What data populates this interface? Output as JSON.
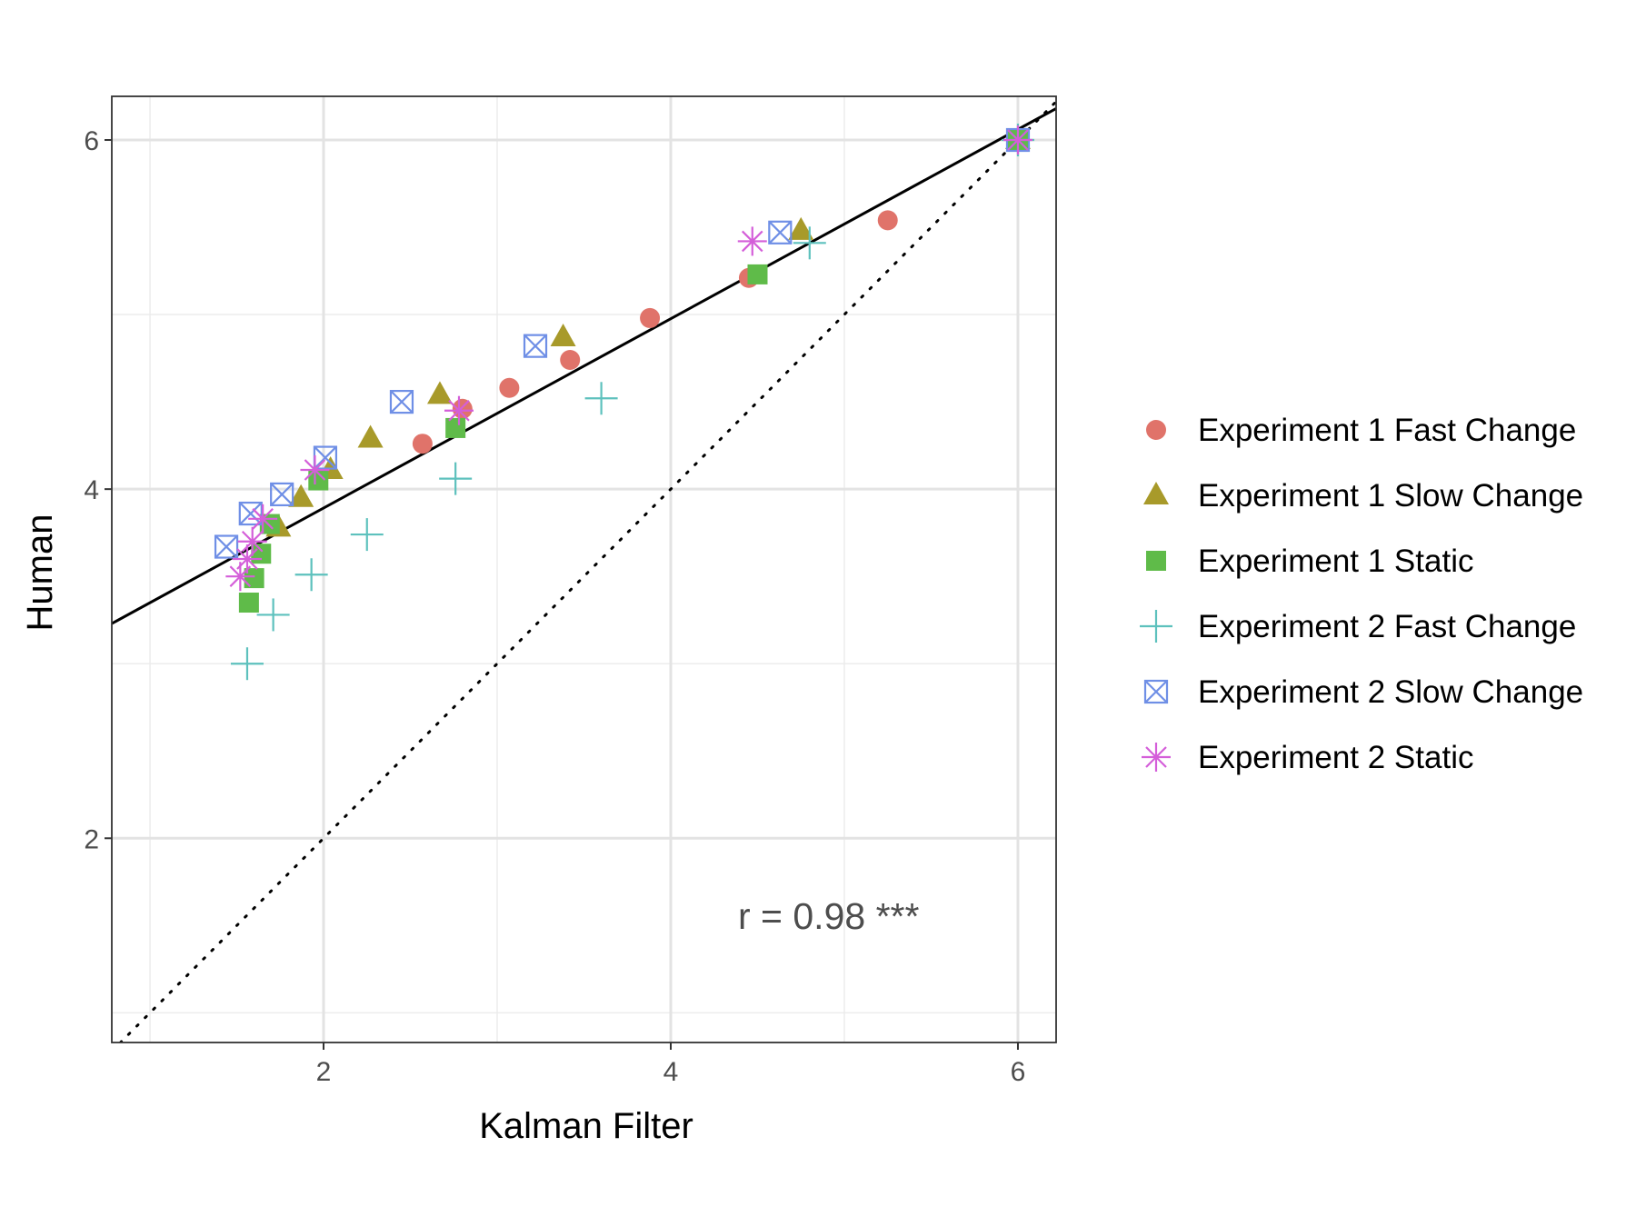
{
  "chart_data": {
    "type": "scatter",
    "title": "",
    "xlabel": "Kalman Filter",
    "ylabel": "Human",
    "xlim": [
      0.78,
      6.22
    ],
    "ylim": [
      0.83,
      6.25
    ],
    "xticks": [
      2,
      4,
      6
    ],
    "yticks": [
      2,
      4,
      6
    ],
    "x_minor": [
      1,
      3,
      5
    ],
    "y_minor": [
      1,
      3,
      5
    ],
    "grid": true,
    "legend_position": "right",
    "annotation": "r = 0.98 ***",
    "lines": [
      {
        "name": "fit",
        "style": "solid",
        "color": "#000000",
        "x": [
          0.78,
          6.22
        ],
        "y": [
          3.23,
          6.18
        ]
      },
      {
        "name": "identity",
        "style": "dotted",
        "color": "#000000",
        "x": [
          0.78,
          6.22
        ],
        "y": [
          0.78,
          6.22
        ]
      }
    ],
    "series": [
      {
        "name": "Experiment 1 Fast Change",
        "shape": "circle",
        "color": "#E0736A",
        "points": [
          [
            2.57,
            4.26
          ],
          [
            2.8,
            4.46
          ],
          [
            3.07,
            4.58
          ],
          [
            3.42,
            4.74
          ],
          [
            3.88,
            4.98
          ],
          [
            4.45,
            5.21
          ],
          [
            5.25,
            5.54
          ],
          [
            6.0,
            6.0
          ]
        ]
      },
      {
        "name": "Experiment 1 Slow Change",
        "shape": "triangle",
        "color": "#A89A2A",
        "points": [
          [
            1.74,
            3.78
          ],
          [
            1.87,
            3.95
          ],
          [
            2.04,
            4.11
          ],
          [
            2.27,
            4.29
          ],
          [
            2.67,
            4.54
          ],
          [
            3.38,
            4.87
          ],
          [
            4.75,
            5.48
          ],
          [
            6.0,
            6.0
          ]
        ]
      },
      {
        "name": "Experiment 1 Static",
        "shape": "square",
        "color": "#5FBB49",
        "points": [
          [
            1.57,
            3.35
          ],
          [
            1.6,
            3.49
          ],
          [
            1.64,
            3.63
          ],
          [
            1.69,
            3.8
          ],
          [
            1.97,
            4.05
          ],
          [
            2.76,
            4.35
          ],
          [
            4.5,
            5.23
          ],
          [
            6.0,
            6.0
          ]
        ]
      },
      {
        "name": "Experiment 2 Fast Change",
        "shape": "plus",
        "color": "#5DC1BD",
        "points": [
          [
            1.56,
            3.0
          ],
          [
            1.71,
            3.28
          ],
          [
            1.93,
            3.51
          ],
          [
            2.25,
            3.74
          ],
          [
            2.76,
            4.06
          ],
          [
            3.6,
            4.52
          ],
          [
            4.8,
            5.41
          ],
          [
            6.0,
            6.0
          ]
        ]
      },
      {
        "name": "Experiment 2 Slow Change",
        "shape": "boxx",
        "color": "#6F8FE6",
        "points": [
          [
            1.44,
            3.67
          ],
          [
            1.58,
            3.86
          ],
          [
            1.76,
            3.97
          ],
          [
            2.01,
            4.18
          ],
          [
            2.45,
            4.5
          ],
          [
            3.22,
            4.82
          ],
          [
            4.63,
            5.47
          ],
          [
            6.0,
            6.0
          ]
        ]
      },
      {
        "name": "Experiment 2 Static",
        "shape": "star",
        "color": "#D45ED9",
        "points": [
          [
            1.52,
            3.5
          ],
          [
            1.56,
            3.6
          ],
          [
            1.59,
            3.7
          ],
          [
            1.65,
            3.83
          ],
          [
            1.95,
            4.11
          ],
          [
            2.78,
            4.45
          ],
          [
            4.47,
            5.42
          ],
          [
            6.0,
            6.0
          ]
        ]
      }
    ]
  }
}
